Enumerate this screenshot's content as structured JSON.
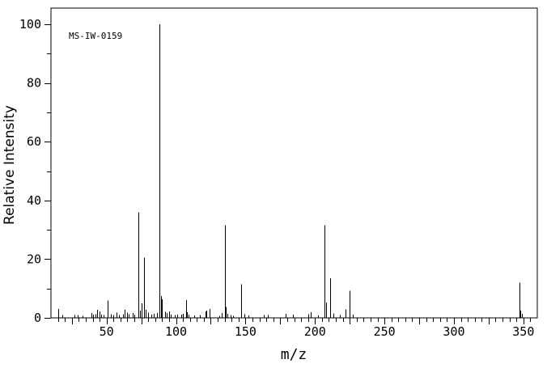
{
  "chart_data": {
    "type": "bar",
    "subtype": "mass-spectrum",
    "annotation": "MS-IW-0159",
    "xlabel": "m/z",
    "ylabel": "Relative Intensity",
    "xlim": [
      10,
      360
    ],
    "ylim": [
      0,
      105.5
    ],
    "x_ticks_labeled": [
      50,
      100,
      150,
      200,
      250,
      300,
      350
    ],
    "x_tick_minor_step": 5,
    "x_tick_medium_step": 25,
    "y_ticks_labeled": [
      0,
      20,
      40,
      60,
      80,
      100
    ],
    "y_tick_minor_step": 10,
    "grid": false,
    "legend": null,
    "line_color": "#000000",
    "background_color": "#ffffff",
    "peaks": [
      [
        15,
        3.0
      ],
      [
        18,
        1.0
      ],
      [
        27,
        1.0
      ],
      [
        29,
        1.0
      ],
      [
        33,
        0.7
      ],
      [
        39,
        1.7
      ],
      [
        40,
        1.1
      ],
      [
        42,
        1.2
      ],
      [
        43,
        2.8
      ],
      [
        45,
        2.2
      ],
      [
        46,
        1.1
      ],
      [
        48,
        0.9
      ],
      [
        51,
        5.9
      ],
      [
        53,
        1.2
      ],
      [
        55,
        1.0
      ],
      [
        57,
        1.8
      ],
      [
        59,
        1.0
      ],
      [
        62,
        1.2
      ],
      [
        63,
        2.8
      ],
      [
        65,
        1.8
      ],
      [
        66,
        1.2
      ],
      [
        69,
        1.7
      ],
      [
        70,
        1.1
      ],
      [
        73,
        36.0
      ],
      [
        74,
        2.5
      ],
      [
        75,
        5.0
      ],
      [
        77,
        20.5
      ],
      [
        78,
        2.8
      ],
      [
        80,
        1.8
      ],
      [
        82,
        1.1
      ],
      [
        84,
        1.4
      ],
      [
        86,
        1.7
      ],
      [
        88,
        100.0
      ],
      [
        89,
        7.5
      ],
      [
        90,
        6.3
      ],
      [
        92,
        2.0
      ],
      [
        93,
        1.7
      ],
      [
        95,
        2.2
      ],
      [
        96,
        1.1
      ],
      [
        99,
        0.9
      ],
      [
        101,
        1.1
      ],
      [
        104,
        1.1
      ],
      [
        105,
        1.4
      ],
      [
        107,
        6.1
      ],
      [
        108,
        1.9
      ],
      [
        109,
        1.1
      ],
      [
        113,
        0.8
      ],
      [
        117,
        1.0
      ],
      [
        121,
        2.2
      ],
      [
        122,
        2.5
      ],
      [
        124,
        3.0
      ],
      [
        131,
        0.7
      ],
      [
        133,
        1.7
      ],
      [
        135,
        31.5
      ],
      [
        136,
        3.7
      ],
      [
        137,
        1.4
      ],
      [
        139,
        0.9
      ],
      [
        141,
        0.7
      ],
      [
        147,
        11.5
      ],
      [
        149,
        1.3
      ],
      [
        152,
        0.8
      ],
      [
        163,
        1.0
      ],
      [
        166,
        1.0
      ],
      [
        179,
        1.4
      ],
      [
        184,
        1.1
      ],
      [
        195,
        1.3
      ],
      [
        197,
        1.9
      ],
      [
        202,
        0.8
      ],
      [
        207,
        31.5
      ],
      [
        208,
        5.3
      ],
      [
        211,
        13.5
      ],
      [
        213,
        1.5
      ],
      [
        218,
        1.0
      ],
      [
        222,
        2.9
      ],
      [
        225,
        9.2
      ],
      [
        227,
        1.1
      ],
      [
        347,
        12.0
      ],
      [
        348,
        2.5
      ],
      [
        349,
        1.4
      ]
    ]
  }
}
